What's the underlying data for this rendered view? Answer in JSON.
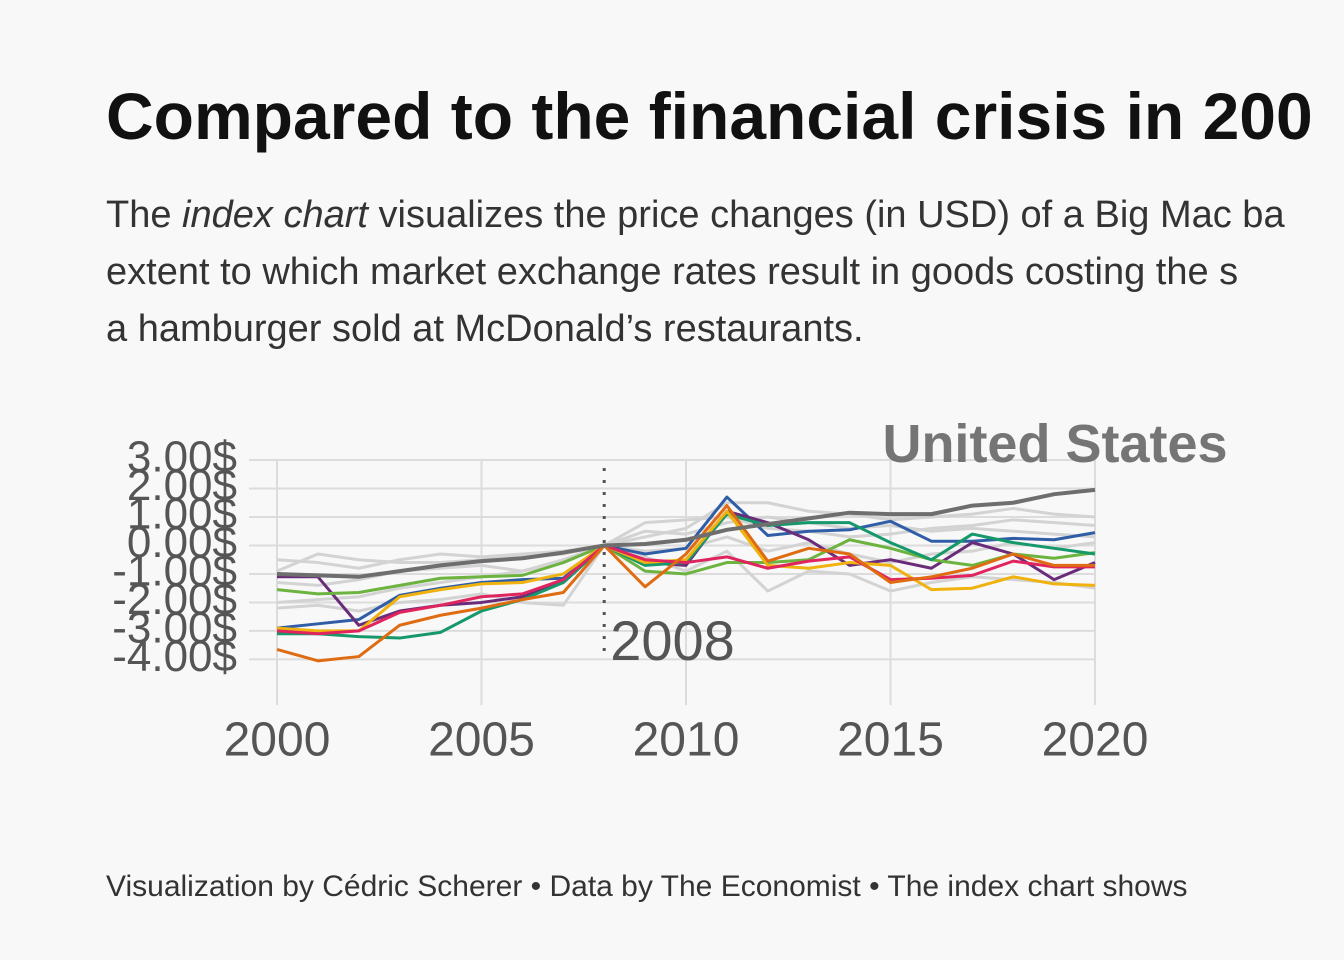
{
  "title": "Compared to the financial crisis in 200",
  "subtitle": [
    [
      "The ",
      "index chart",
      " visualizes the price changes (in USD) of a Big Mac ba"
    ],
    [
      "extent to which market exchange rates result in goods costing the s"
    ],
    [
      "a hamburger sold at McDonald’s restaurants."
    ]
  ],
  "caption": "Visualization by Cédric Scherer  •  Data by The Economist  •  The index chart shows",
  "chart_data": {
    "type": "line",
    "x": [
      2000,
      2001,
      2002,
      2003,
      2004,
      2005,
      2006,
      2007,
      2008,
      2009,
      2010,
      2011,
      2012,
      2013,
      2014,
      2015,
      2016,
      2017,
      2018,
      2019,
      2020
    ],
    "xlim": [
      2000,
      2020
    ],
    "xticks": [
      2000,
      2005,
      2010,
      2015,
      2020
    ],
    "ylim": [
      -5.6,
      3
    ],
    "yticks": [
      {
        "value": 3,
        "label": "3.00$"
      },
      {
        "value": 2,
        "label": "2.00$"
      },
      {
        "value": 1,
        "label": "1.00$"
      },
      {
        "value": 0,
        "label": "0.00$"
      },
      {
        "value": -1,
        "label": "-1.00$"
      },
      {
        "value": -2,
        "label": "-2.00$"
      },
      {
        "value": -3,
        "label": "-3.00$"
      },
      {
        "value": -4,
        "label": "-4.00$"
      }
    ],
    "grid": true,
    "annotation": {
      "x": 2008,
      "label": "2008"
    },
    "series": [
      {
        "color": "#d3d3d3",
        "values": [
          -2.0,
          -1.9,
          -1.8,
          -1.5,
          -1.3,
          -1.1,
          -0.9,
          -0.6,
          0,
          0.3,
          0.6,
          1.5,
          1.5,
          1.2,
          1.1,
          0.9,
          1.0,
          1.1,
          1.3,
          1.1,
          1.0
        ]
      },
      {
        "color": "#d3d3d3",
        "values": [
          -0.5,
          -0.6,
          -0.8,
          -0.5,
          -0.3,
          -0.4,
          -0.3,
          -0.2,
          0,
          0.8,
          0.9,
          1.0,
          0.6,
          0.5,
          0.3,
          0.4,
          0.6,
          0.7,
          0.9,
          0.8,
          0.7
        ]
      },
      {
        "color": "#d3d3d3",
        "values": [
          -2.2,
          -2.1,
          -2.3,
          -2.0,
          -1.9,
          -1.7,
          -2.0,
          -2.1,
          0,
          -0.4,
          -0.9,
          -0.2,
          -1.6,
          -0.9,
          -1.0,
          -1.6,
          -1.3,
          -1.1,
          -1.2,
          -1.3,
          -1.5
        ]
      },
      {
        "color": "#d3d3d3",
        "values": [
          -1.3,
          -1.4,
          -1.2,
          -0.9,
          -0.8,
          -0.7,
          -0.9,
          -0.5,
          0,
          -0.2,
          -0.1,
          0.3,
          -0.2,
          0.1,
          -0.3,
          -0.6,
          -0.3,
          -0.2,
          0.1,
          -0.1,
          0.1
        ]
      },
      {
        "color": "#d3d3d3",
        "values": [
          -0.9,
          -0.3,
          -0.5,
          -0.6,
          -0.6,
          -0.5,
          -0.4,
          -0.3,
          0,
          0.5,
          0.4,
          0.8,
          1.0,
          0.8,
          0.6,
          0.7,
          0.5,
          0.6,
          0.5,
          0.4,
          0.3
        ]
      },
      {
        "color": "#2f5da6",
        "values": [
          -2.9,
          -2.75,
          -2.6,
          -1.75,
          -1.5,
          -1.3,
          -1.2,
          -1.15,
          0,
          -0.3,
          -0.1,
          1.7,
          0.35,
          0.5,
          0.55,
          0.85,
          0.15,
          0.15,
          0.25,
          0.2,
          0.45
        ]
      },
      {
        "color": "#6a2c7a",
        "values": [
          -1.1,
          -1.1,
          -2.8,
          -2.3,
          -2.1,
          -2.0,
          -1.8,
          -1.3,
          0,
          -0.6,
          -0.7,
          1.2,
          0.8,
          0.2,
          -0.7,
          -0.5,
          -0.8,
          0.1,
          -0.3,
          -1.2,
          -0.6
        ]
      },
      {
        "color": "#6cb33f",
        "values": [
          -1.55,
          -1.7,
          -1.65,
          -1.4,
          -1.15,
          -1.1,
          -1.05,
          -0.6,
          0,
          -0.9,
          -1.0,
          -0.6,
          -0.6,
          -0.5,
          0.2,
          -0.1,
          -0.5,
          -0.7,
          -0.3,
          -0.45,
          -0.25
        ]
      },
      {
        "color": "#15986a",
        "values": [
          -3.1,
          -3.1,
          -3.2,
          -3.25,
          -3.05,
          -2.3,
          -1.9,
          -1.3,
          0,
          -0.7,
          -0.6,
          1.1,
          0.7,
          0.8,
          0.8,
          0.1,
          -0.5,
          0.4,
          0.1,
          -0.1,
          -0.3
        ]
      },
      {
        "color": "#efb20e",
        "values": [
          -2.9,
          -3.0,
          -3.0,
          -1.8,
          -1.55,
          -1.35,
          -1.3,
          -1.0,
          0,
          -0.6,
          -0.5,
          1.2,
          -0.7,
          -0.8,
          -0.6,
          -0.7,
          -1.55,
          -1.5,
          -1.1,
          -1.35,
          -1.4
        ]
      },
      {
        "color": "#e0245e",
        "values": [
          -3.0,
          -3.1,
          -3.0,
          -2.35,
          -2.1,
          -1.8,
          -1.7,
          -1.2,
          0,
          -0.5,
          -0.6,
          -0.4,
          -0.8,
          -0.55,
          -0.4,
          -1.2,
          -1.15,
          -1.05,
          -0.55,
          -0.75,
          -0.75
        ]
      },
      {
        "color": "#e06c12",
        "values": [
          -3.65,
          -4.05,
          -3.9,
          -2.8,
          -2.45,
          -2.2,
          -1.9,
          -1.65,
          0,
          -1.45,
          -0.3,
          1.4,
          -0.55,
          -0.1,
          -0.3,
          -1.3,
          -1.1,
          -0.8,
          -0.3,
          -0.7,
          -0.7
        ]
      },
      {
        "name": "United States",
        "color": "#6e6e6e",
        "values": [
          -1.0,
          -1.05,
          -1.1,
          -0.9,
          -0.7,
          -0.55,
          -0.45,
          -0.25,
          0,
          0.05,
          0.2,
          0.55,
          0.75,
          0.95,
          1.15,
          1.1,
          1.1,
          1.4,
          1.5,
          1.8,
          1.95
        ]
      }
    ]
  }
}
